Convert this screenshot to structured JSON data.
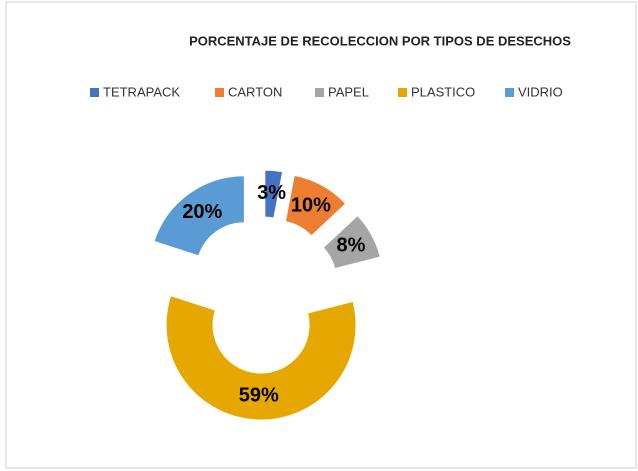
{
  "chart_data": {
    "type": "doughnut",
    "title": "PORCENTAJE DE RECOLECCION POR TIPOS DE DESECHOS",
    "categories": [
      "TETRAPACK",
      "CARTON",
      "PAPEL",
      "PLASTICO",
      "VIDRIO"
    ],
    "values": [
      3,
      10,
      8,
      59,
      20
    ],
    "value_labels": [
      "3%",
      "10%",
      "8%",
      "59%",
      "20%"
    ],
    "colors": [
      "#4472c4",
      "#ed7d31",
      "#a5a5a5",
      "#e6a800",
      "#5b9bd5"
    ],
    "legend": "top",
    "exploded": true
  }
}
